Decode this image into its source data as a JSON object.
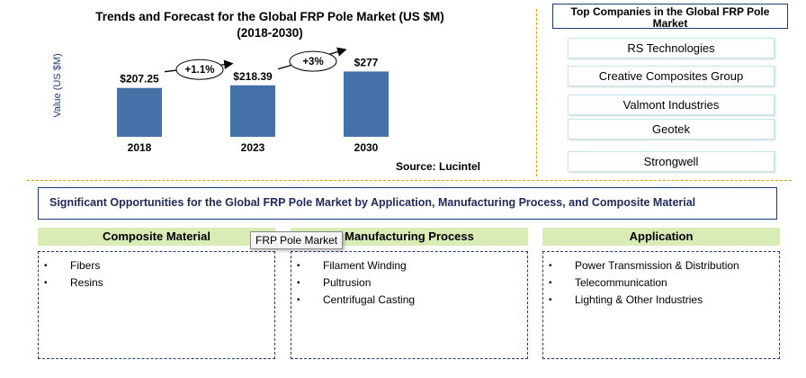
{
  "chart_data": {
    "type": "bar",
    "title_line1": "Trends and Forecast for the Global FRP Pole Market (US $M)",
    "title_line2": "(2018-2030)",
    "ylabel": "Value (US $M)",
    "categories": [
      "2018",
      "2023",
      "2030"
    ],
    "values": [
      207.25,
      218.39,
      277
    ],
    "value_labels": [
      "$207.25",
      "$218.39",
      "$277"
    ],
    "growth_labels": [
      "+1.1%",
      "+3%"
    ],
    "bar_color": "#4472a8",
    "source": "Source: Lucintel"
  },
  "companies": {
    "title": "Top Companies in the Global FRP Pole Market",
    "items": [
      "RS Technologies",
      "Creative Composites Group",
      "Valmont Industries",
      "Geotek",
      "Strongwell"
    ]
  },
  "opportunities": {
    "banner": "Significant Opportunities for the Global FRP Pole Market by Application, Manufacturing Process, and Composite  Material",
    "columns": [
      {
        "title": "Composite Material",
        "items": [
          "Fibers",
          "Resins"
        ]
      },
      {
        "title": "Manufacturing Process",
        "items": [
          "Filament Winding",
          "Pultrusion",
          "Centrifugal Casting"
        ]
      },
      {
        "title": "Application",
        "items": [
          "Power Transmission & Distribution",
          "Telecommunication",
          "Lighting & Other Industries"
        ]
      }
    ]
  },
  "tooltip": "FRP Pole Market"
}
